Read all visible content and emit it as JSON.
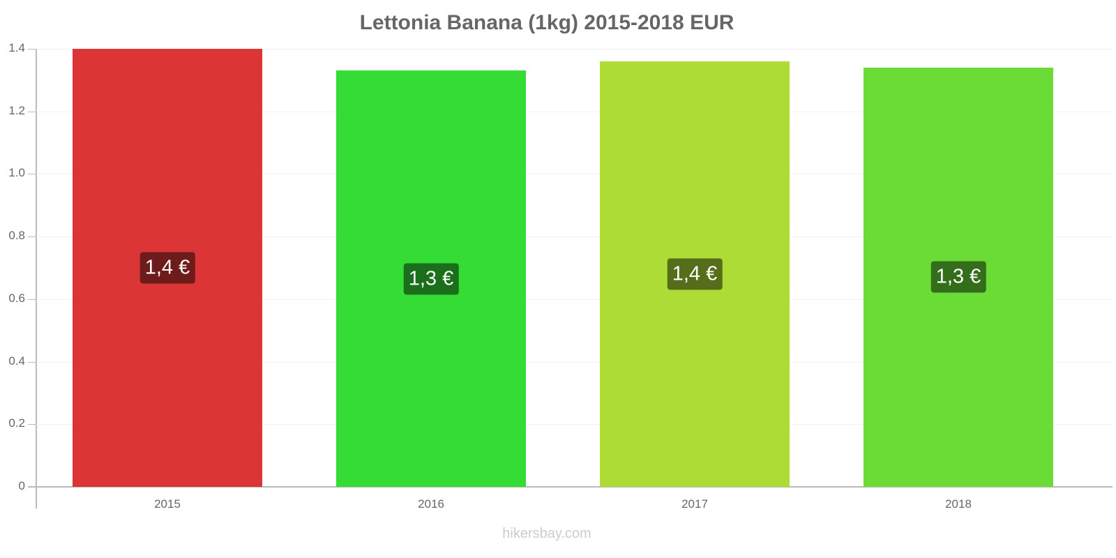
{
  "chart_data": {
    "type": "bar",
    "title": "Lettonia Banana (1kg) 2015-2018 EUR",
    "categories": [
      "2015",
      "2016",
      "2017",
      "2018"
    ],
    "values": [
      1.4,
      1.33,
      1.36,
      1.34
    ],
    "data_labels": [
      "1,4 €",
      "1,3 €",
      "1,4 €",
      "1,3 €"
    ],
    "colors": [
      "#dc3535",
      "#35dc35",
      "#acdc35",
      "#6adc35"
    ],
    "label_colors": [
      "#6e1b1b",
      "#1b6e1b",
      "#566e1b",
      "#356e1b"
    ],
    "xlabel": "",
    "ylabel": "",
    "ylim": [
      0,
      1.4
    ],
    "yticks": [
      "0",
      "0.2",
      "0.4",
      "0.6",
      "0.8",
      "1.0",
      "1.2",
      "1.4"
    ],
    "grid": true,
    "legend": null
  },
  "credit": "hikersbay.com"
}
